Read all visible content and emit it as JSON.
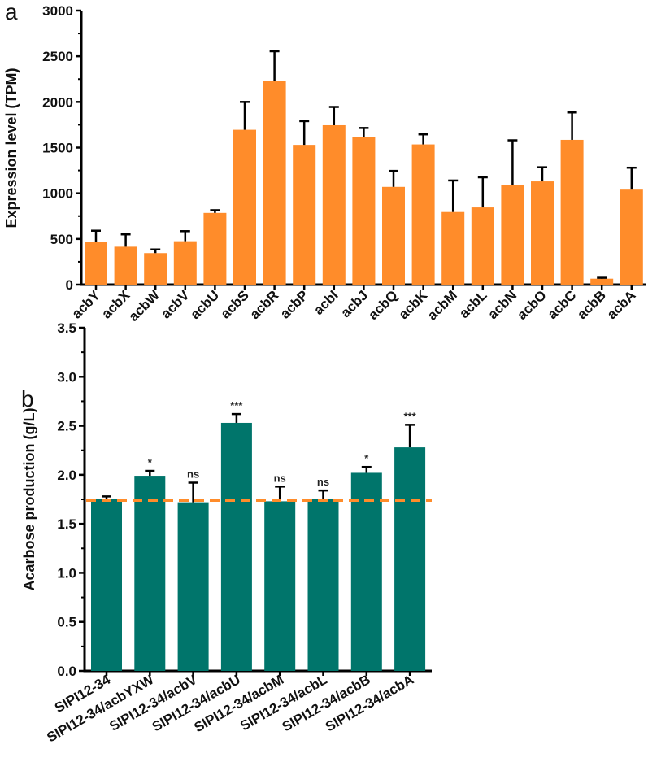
{
  "chart_data": [
    {
      "panel": "a",
      "type": "bar",
      "xlabel": "",
      "ylabel": "Expression level (TPM)",
      "ylim": [
        0,
        3000
      ],
      "yticks": [
        0,
        500,
        1000,
        1500,
        2000,
        2500,
        3000
      ],
      "bar_color": "#FF8C2A",
      "categories": [
        "acbY",
        "acbX",
        "acbW",
        "acbV",
        "acbU",
        "acbS",
        "acbR",
        "acbP",
        "acbI",
        "acbJ",
        "acbQ",
        "acbK",
        "acbM",
        "acbL",
        "acbN",
        "acbO",
        "acbC",
        "acbB",
        "acbA"
      ],
      "values": [
        465,
        415,
        345,
        475,
        785,
        1695,
        2230,
        1530,
        1745,
        1620,
        1070,
        1535,
        795,
        845,
        1095,
        1130,
        1585,
        65,
        1040
      ],
      "error_upper": [
        590,
        550,
        385,
        585,
        815,
        2000,
        2555,
        1790,
        1945,
        1715,
        1245,
        1645,
        1140,
        1175,
        1580,
        1285,
        1885,
        75,
        1280
      ]
    },
    {
      "panel": "b",
      "type": "bar",
      "xlabel": "",
      "ylabel": "Acarbose production (g/L)",
      "ylim": [
        0,
        3.5
      ],
      "yticks": [
        "0.0",
        "0.5",
        "1.0",
        "1.5",
        "2.0",
        "2.5",
        "3.0",
        "3.5"
      ],
      "bar_color": "#00756B",
      "reference_line": {
        "value": 1.74,
        "color": "#FF8C2A",
        "style": "dashed"
      },
      "categories": [
        "SIPI12-34",
        "SIPI12-34/acbYXW",
        "SIPI12-34/acbV",
        "SIPI12-34/acbU",
        "SIPI12-34/acbM",
        "SIPI12-34/acbL",
        "SIPI12-34/acbB",
        "SIPI12-34/acbA"
      ],
      "values": [
        1.75,
        1.99,
        1.72,
        2.53,
        1.73,
        1.75,
        2.02,
        2.28
      ],
      "error_upper": [
        1.78,
        2.04,
        1.92,
        2.62,
        1.88,
        1.84,
        2.08,
        2.51
      ],
      "significance": [
        "",
        "*",
        "ns",
        "***",
        "ns",
        "ns",
        "*",
        "***"
      ]
    }
  ]
}
